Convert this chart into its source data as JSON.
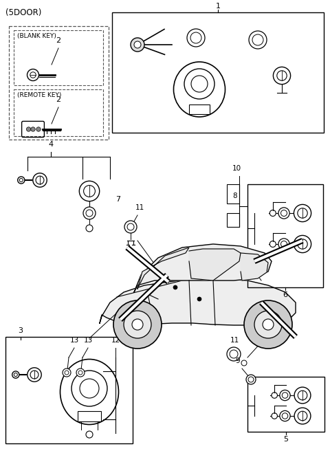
{
  "background_color": "#ffffff",
  "fig_width": 4.8,
  "fig_height": 6.56,
  "dpi": 100,
  "title": "(5DOOR)",
  "label_1": "1",
  "label_3": "3",
  "label_4": "4",
  "label_5": "5",
  "label_6": "6",
  "label_7": "7",
  "label_8": "8",
  "label_9": "9",
  "label_10": "10",
  "label_11": "11",
  "label_12": "12",
  "label_13": "13",
  "label_blank": "(BLANK KEY)",
  "label_remote": "(REMOTE KEY)",
  "label_2": "2",
  "lc": "#000000",
  "tc": "#000000",
  "gray": "#888888",
  "lightgray": "#eeeeee"
}
